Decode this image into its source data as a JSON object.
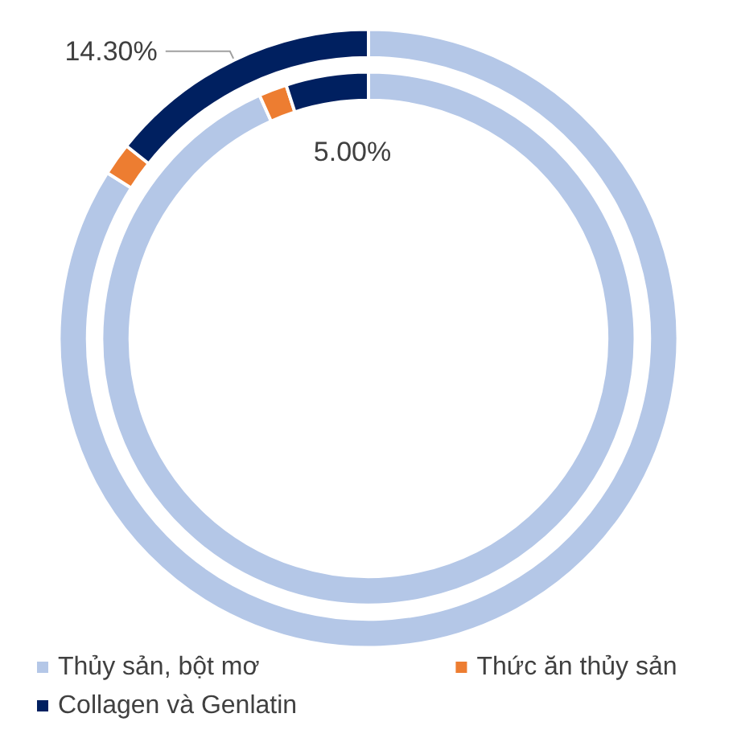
{
  "chart_data": {
    "type": "donut",
    "categories": [
      "Thủy sản, bột mơ",
      "Thức ăn thủy sản",
      "Collagen và Genlatin"
    ],
    "colors": [
      "#b4c7e7",
      "#ed7d31",
      "#002060"
    ],
    "series": [
      {
        "values": [
          93.3,
          1.7,
          5.0
        ],
        "value_labels": [
          null,
          null,
          "5.00%"
        ]
      },
      {
        "values": [
          84.0,
          1.7,
          14.3
        ],
        "value_labels": [
          null,
          null,
          "14.30%"
        ]
      }
    ],
    "legend": "bottom"
  }
}
